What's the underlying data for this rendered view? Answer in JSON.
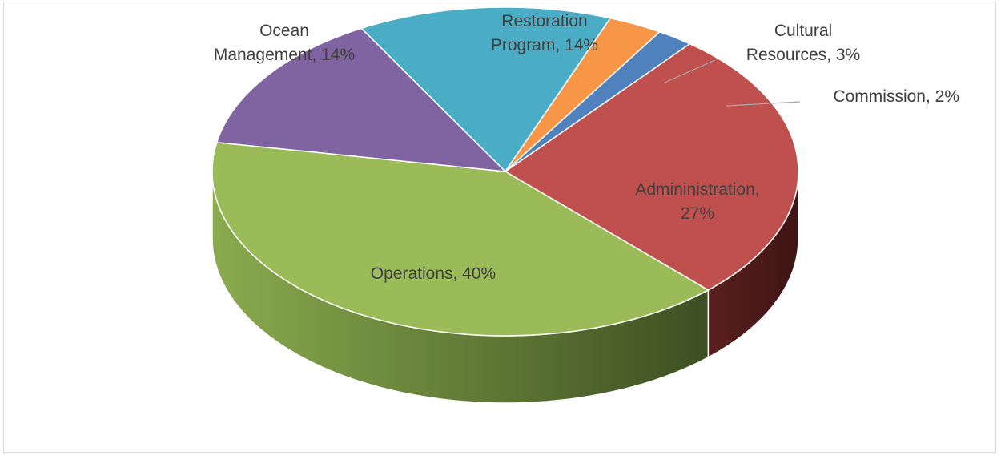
{
  "chart_data": {
    "type": "pie",
    "style": "3d",
    "title": "",
    "slices": [
      {
        "label_lines": [
          "Admininistration,",
          "27%"
        ],
        "label": "Admininistration",
        "value": 27,
        "color": "#c0504d"
      },
      {
        "label_lines": [
          "Operations, 40%"
        ],
        "label": "Operations",
        "value": 40,
        "color": "#9bbb59"
      },
      {
        "label_lines": [
          "Ocean",
          "Management, 14%"
        ],
        "label": "Ocean Management",
        "value": 14,
        "color": "#8064a2"
      },
      {
        "label_lines": [
          "Restoration",
          "Program, 14%"
        ],
        "label": "Restoration Program",
        "value": 14,
        "color": "#4bacc6"
      },
      {
        "label_lines": [
          "Cultural",
          "Resources, 3%"
        ],
        "label": "Cultural Resources",
        "value": 3,
        "color": "#f79646"
      },
      {
        "label_lines": [
          "Commission, 2%"
        ],
        "label": "Commission",
        "value": 2,
        "color": "#4f81bd"
      }
    ]
  }
}
